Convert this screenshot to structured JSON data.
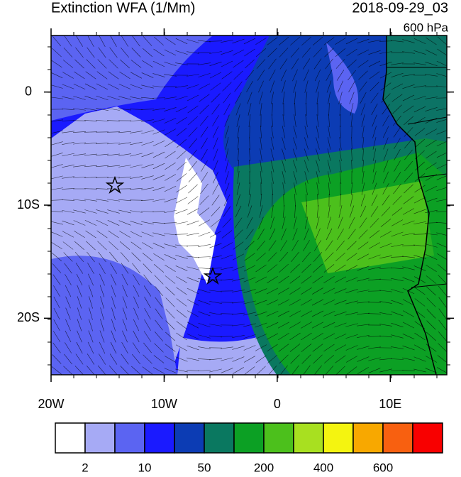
{
  "title": "Extinction WFA (1/Mm)",
  "date": "2018-09-29_03",
  "level": "600 hPa",
  "map": {
    "xlim": [
      -20,
      15
    ],
    "ylim": [
      -25,
      5
    ],
    "xticks": [
      {
        "value": -20,
        "label": "20W"
      },
      {
        "value": -10,
        "label": "10W"
      },
      0,
      {
        "value": 10,
        "label": "10E"
      }
    ],
    "yticks": [
      0,
      {
        "value": -10,
        "label": "10S"
      },
      {
        "value": -20,
        "label": "20S"
      }
    ]
  },
  "colorbar": {
    "colors": [
      "#ffffff",
      "#a6aaf5",
      "#5b64f2",
      "#1a1aff",
      "#0c3cb4",
      "#0a7860",
      "#0ca024",
      "#4cc01c",
      "#a8e020",
      "#f4f410",
      "#f8a800",
      "#f86010",
      "#f80000"
    ],
    "labels": [
      2,
      10,
      50,
      200,
      400,
      600
    ]
  }
}
